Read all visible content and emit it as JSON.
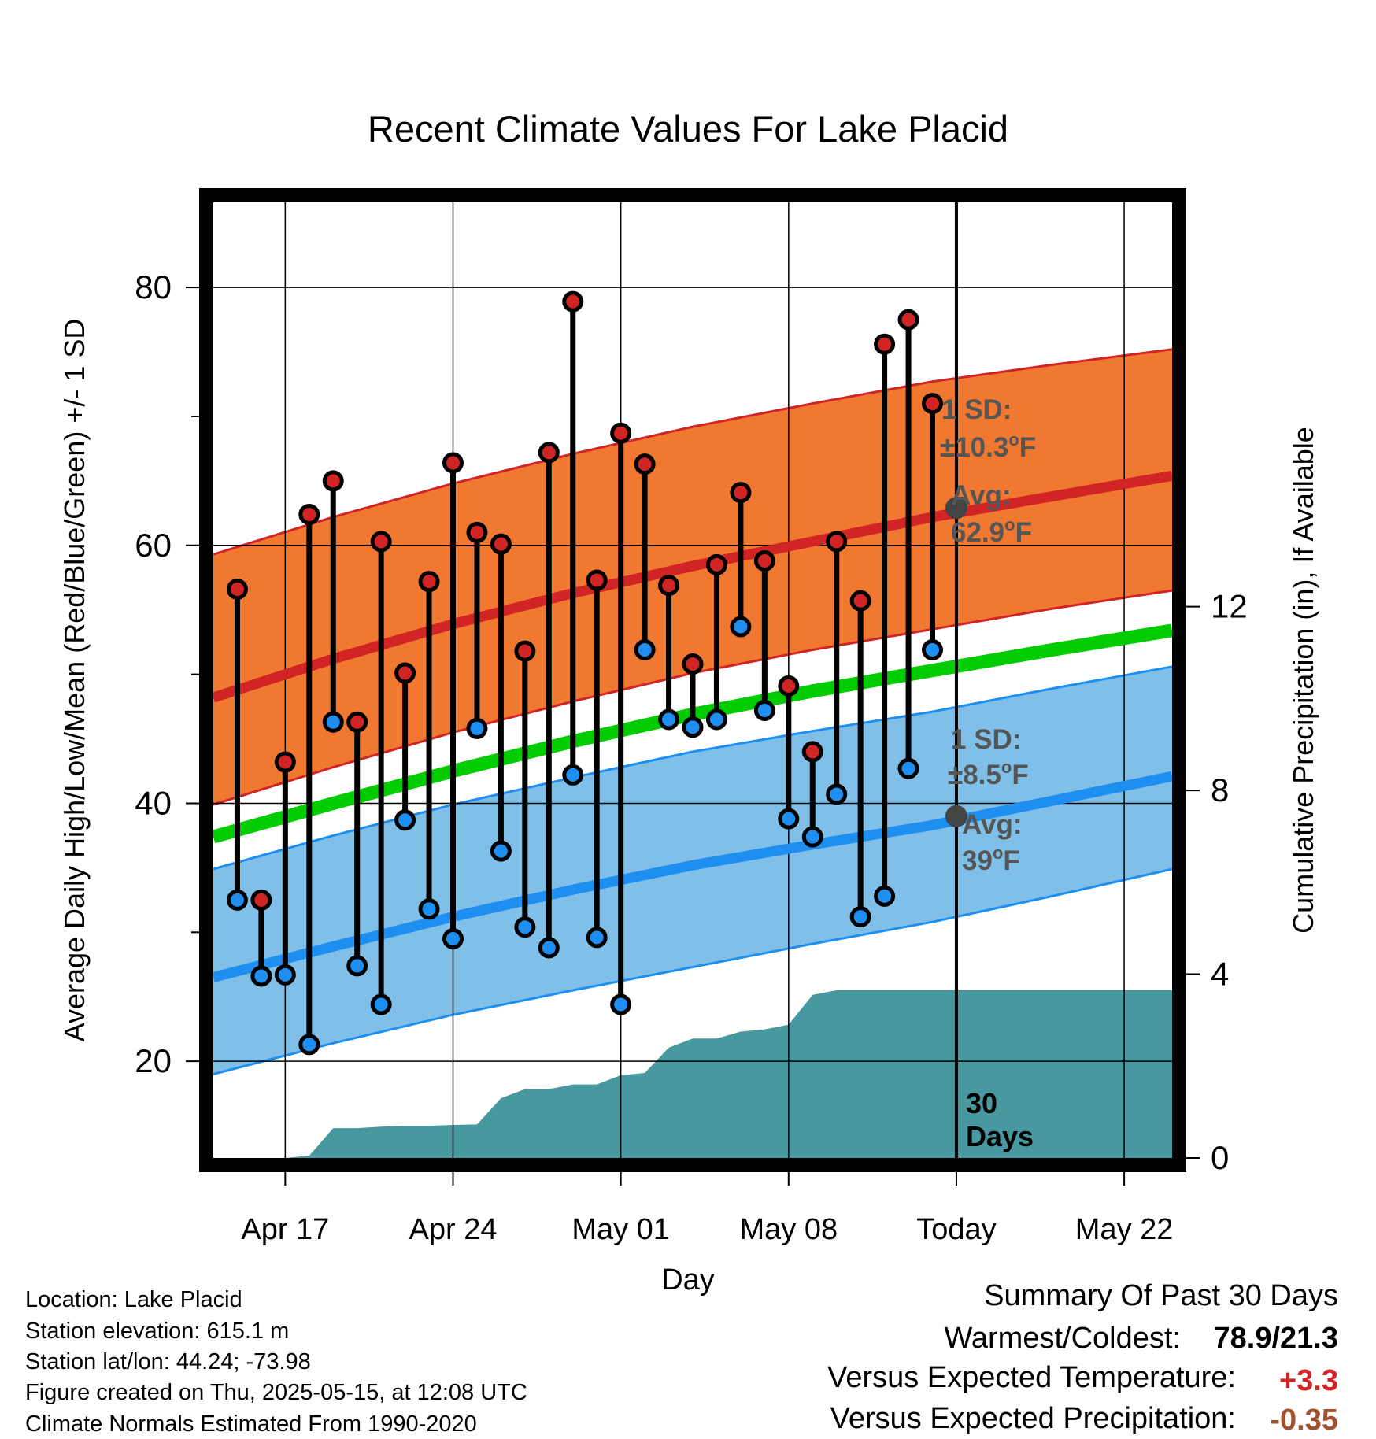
{
  "chart_data": {
    "type": "line",
    "title": "Recent Climate Values For Lake Placid",
    "xlabel": "Day",
    "ylabel": "Average Daily High/Low/Mean (Red/Blue/Green) +/- 1 SD",
    "y2label": "Cumulative Precipitation (in), If Available",
    "ylim": [
      12.5,
      86.6
    ],
    "y2lim": [
      0,
      20.8
    ],
    "y_ticks": [
      20,
      40,
      60,
      80
    ],
    "y_minor_ticks": [
      30,
      50,
      70
    ],
    "y2_ticks": [
      0,
      4,
      8,
      12
    ],
    "x_tick_labels": [
      "Apr 17",
      "Apr 24",
      "May 01",
      "May 08",
      "Today",
      "May 22"
    ],
    "x_ticks": [
      "2025-04-17",
      "2025-04-24",
      "2025-05-01",
      "2025-05-08",
      "2025-05-15",
      "2025-05-22"
    ],
    "x_range": [
      "2025-04-14",
      "2025-05-24"
    ],
    "today": "2025-05-15",
    "today_label": "Today",
    "days_label_number": "30",
    "days_label_word": "Days",
    "grid": true,
    "normals": {
      "dates": [
        "2025-04-14",
        "2025-04-19",
        "2025-04-24",
        "2025-04-29",
        "2025-05-04",
        "2025-05-09",
        "2025-05-14",
        "2025-05-19",
        "2025-05-24"
      ],
      "high": [
        48.2,
        51.2,
        53.9,
        56.3,
        58.4,
        60.3,
        62.2,
        63.8,
        65.4
      ],
      "high_upper": [
        59.3,
        62.2,
        64.8,
        67.1,
        69.2,
        71.0,
        72.7,
        74.0,
        75.2
      ],
      "high_lower": [
        39.9,
        42.8,
        45.5,
        47.9,
        50.1,
        51.9,
        53.5,
        55.1,
        56.5
      ],
      "mean": [
        37.4,
        40.0,
        42.5,
        44.8,
        46.9,
        48.7,
        50.3,
        51.9,
        53.4
      ],
      "low": [
        26.5,
        28.9,
        31.2,
        33.3,
        35.2,
        36.8,
        38.3,
        40.2,
        42.1
      ],
      "low_upper": [
        34.9,
        37.5,
        39.9,
        42.0,
        44.0,
        45.6,
        47.1,
        48.9,
        50.6
      ],
      "low_lower": [
        19.0,
        21.4,
        23.6,
        25.5,
        27.3,
        29.1,
        30.8,
        32.8,
        34.9
      ]
    },
    "series": [
      {
        "name": "High",
        "color": "#d12424",
        "x": [
          "2025-04-15",
          "2025-04-16",
          "2025-04-17",
          "2025-04-18",
          "2025-04-19",
          "2025-04-20",
          "2025-04-21",
          "2025-04-22",
          "2025-04-23",
          "2025-04-24",
          "2025-04-25",
          "2025-04-26",
          "2025-04-27",
          "2025-04-28",
          "2025-04-29",
          "2025-04-30",
          "2025-05-01",
          "2025-05-02",
          "2025-05-03",
          "2025-05-04",
          "2025-05-05",
          "2025-05-06",
          "2025-05-07",
          "2025-05-08",
          "2025-05-09",
          "2025-05-10",
          "2025-05-11",
          "2025-05-12",
          "2025-05-13",
          "2025-05-14"
        ],
        "values": [
          56.6,
          32.5,
          43.2,
          62.4,
          65.0,
          46.3,
          60.3,
          50.1,
          57.2,
          66.4,
          61.0,
          60.1,
          51.8,
          67.2,
          78.9,
          57.3,
          68.7,
          66.3,
          56.9,
          50.8,
          58.5,
          64.1,
          58.8,
          49.1,
          44.0,
          60.3,
          55.7,
          75.6,
          77.5,
          71.0
        ]
      },
      {
        "name": "Low",
        "color": "#1e8ff0",
        "x": [
          "2025-04-15",
          "2025-04-16",
          "2025-04-17",
          "2025-04-18",
          "2025-04-19",
          "2025-04-20",
          "2025-04-21",
          "2025-04-22",
          "2025-04-23",
          "2025-04-24",
          "2025-04-25",
          "2025-04-26",
          "2025-04-27",
          "2025-04-28",
          "2025-04-29",
          "2025-04-30",
          "2025-05-01",
          "2025-05-02",
          "2025-05-03",
          "2025-05-04",
          "2025-05-05",
          "2025-05-06",
          "2025-05-07",
          "2025-05-08",
          "2025-05-09",
          "2025-05-10",
          "2025-05-11",
          "2025-05-12",
          "2025-05-13",
          "2025-05-14"
        ],
        "values": [
          32.5,
          26.6,
          26.7,
          21.3,
          46.3,
          27.4,
          24.4,
          38.7,
          31.8,
          29.5,
          45.8,
          36.3,
          30.4,
          28.8,
          42.2,
          29.6,
          24.4,
          51.9,
          46.5,
          45.9,
          46.5,
          53.7,
          47.2,
          38.8,
          37.4,
          40.7,
          31.2,
          32.8,
          42.7,
          51.9
        ]
      }
    ],
    "precip": {
      "x": [
        "2025-04-14",
        "2025-04-17",
        "2025-04-18",
        "2025-04-19",
        "2025-04-20",
        "2025-04-21",
        "2025-04-22",
        "2025-04-23",
        "2025-04-24",
        "2025-04-25",
        "2025-04-26",
        "2025-04-27",
        "2025-04-28",
        "2025-04-29",
        "2025-04-30",
        "2025-05-01",
        "2025-05-02",
        "2025-05-03",
        "2025-05-04",
        "2025-05-05",
        "2025-05-06",
        "2025-05-07",
        "2025-05-08",
        "2025-05-09",
        "2025-05-10",
        "2025-05-11",
        "2025-05-15",
        "2025-05-24"
      ],
      "cumulative": [
        0,
        0,
        0.05,
        0.65,
        0.65,
        0.68,
        0.7,
        0.7,
        0.72,
        0.73,
        1.3,
        1.5,
        1.5,
        1.6,
        1.6,
        1.8,
        1.85,
        2.4,
        2.6,
        2.6,
        2.75,
        2.8,
        2.9,
        3.55,
        3.65,
        3.65,
        3.65,
        3.65
      ]
    },
    "annotations": {
      "high_sd_title": "1 SD:",
      "high_sd_value": "±10.3",
      "high_sd_unit": "F",
      "high_avg_title": "Avg:",
      "high_avg_value": "62.9",
      "high_avg_unit": "F",
      "low_sd_title": "1 SD:",
      "low_sd_value": "±8.5",
      "low_sd_unit": "F",
      "low_avg_title": "Avg:",
      "low_avg_value": "39",
      "low_avg_unit": "F",
      "degree_symbol": "o"
    },
    "today_high_avg": 62.9,
    "today_low_avg": 39,
    "colors": {
      "high_band": "#f17830",
      "high_line": "#d12424",
      "low_band": "#80c0e8",
      "low_line": "#1e8ff0",
      "mean_line": "#00cc00",
      "precip": "#4898a0",
      "annotation": "#555555",
      "point_red": "#d12424",
      "point_blue": "#1e8ff0"
    }
  },
  "info": {
    "location": "Location: Lake Placid",
    "elevation": "Station elevation: 615.1 m",
    "latlon": "Station lat/lon: 44.24; -73.98",
    "created": "Figure created on Thu, 2025-05-15, at 12:08 UTC",
    "normals": "Climate Normals Estimated From 1990-2020"
  },
  "summary": {
    "title": "Summary Of Past 30 Days",
    "warmest_label": "Warmest/Coldest:",
    "warmest_value": "78.9/21.3",
    "temp_label": "Versus Expected Temperature:",
    "temp_value": "+3.3",
    "temp_color": "#d12424",
    "precip_label": "Versus Expected Precipitation:",
    "precip_value": "-0.35",
    "precip_color": "#a0522d"
  }
}
